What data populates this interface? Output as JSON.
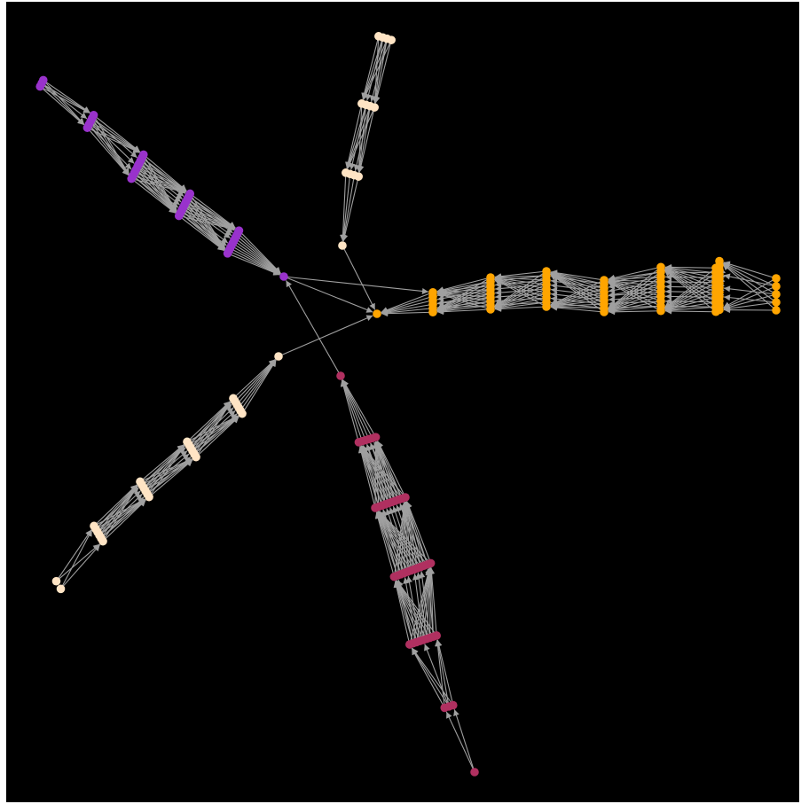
{
  "diagram": {
    "type": "directed-graph",
    "background": "#000000",
    "edge_color": "#a0a0a0",
    "colors": {
      "orange": "#ffa500",
      "purple": "#9932cc",
      "peach": "#ffe4c4",
      "crimson": "#b03060"
    },
    "hub": "orange",
    "branches": [
      {
        "name": "orange",
        "color": "#ffa500",
        "levels": [
          1,
          6,
          9,
          9,
          9,
          10,
          10,
          12,
          5
        ]
      },
      {
        "name": "purple",
        "color": "#9932cc",
        "levels": [
          1,
          10,
          9,
          9,
          5,
          3
        ]
      },
      {
        "name": "peach-top",
        "color": "#ffe4c4",
        "levels": [
          1,
          4,
          4,
          4
        ]
      },
      {
        "name": "peach-left",
        "color": "#ffe4c4",
        "levels": [
          1,
          6,
          6,
          6,
          6,
          2
        ]
      },
      {
        "name": "crimson",
        "color": "#b03060",
        "levels": [
          1,
          6,
          10,
          12,
          9,
          3,
          1
        ]
      }
    ]
  }
}
